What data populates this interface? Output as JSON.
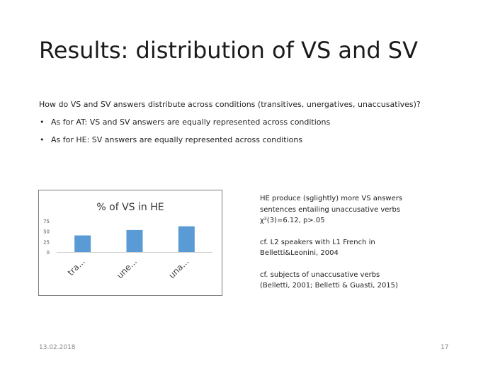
{
  "slide": {
    "title": "Results: distribution of VS and SV",
    "question": "How do VS and SV answers distribute across conditions (transitives, unergatives, unaccusatives)?",
    "bullet_char": "•",
    "bullets": [
      "As for AT: VS and SV answers are equally represented across conditions",
      "As for HE: SV answers are equally represented across conditions"
    ],
    "notes": {
      "p1_line1": "HE produce (sglightly) more VS answers",
      "p1_line2": "sentences entailing unaccusative verbs",
      "p1_line3": "χ²(3)=6.12, p>.05",
      "p2_line1": "cf. L2 speakers with L1 French in",
      "p2_line2": "Belletti&Leonini, 2004",
      "p3_line1": "cf. subjects of unaccusative verbs",
      "p3_line2": "(Belletti, 2001; Belletti & Guasti, 2015)"
    },
    "footer": {
      "date": "13.02.2018",
      "page": "17"
    }
  },
  "chart_data": {
    "type": "bar",
    "title": "% of VS in HE",
    "categories": [
      "tra...",
      "une...",
      "una..."
    ],
    "values": [
      40,
      53,
      62
    ],
    "ylim": [
      0,
      75
    ],
    "yticks": [
      0,
      25,
      50,
      75
    ],
    "xlabel": "",
    "ylabel": "",
    "grid": false,
    "bar_color": "#5b9bd5"
  }
}
